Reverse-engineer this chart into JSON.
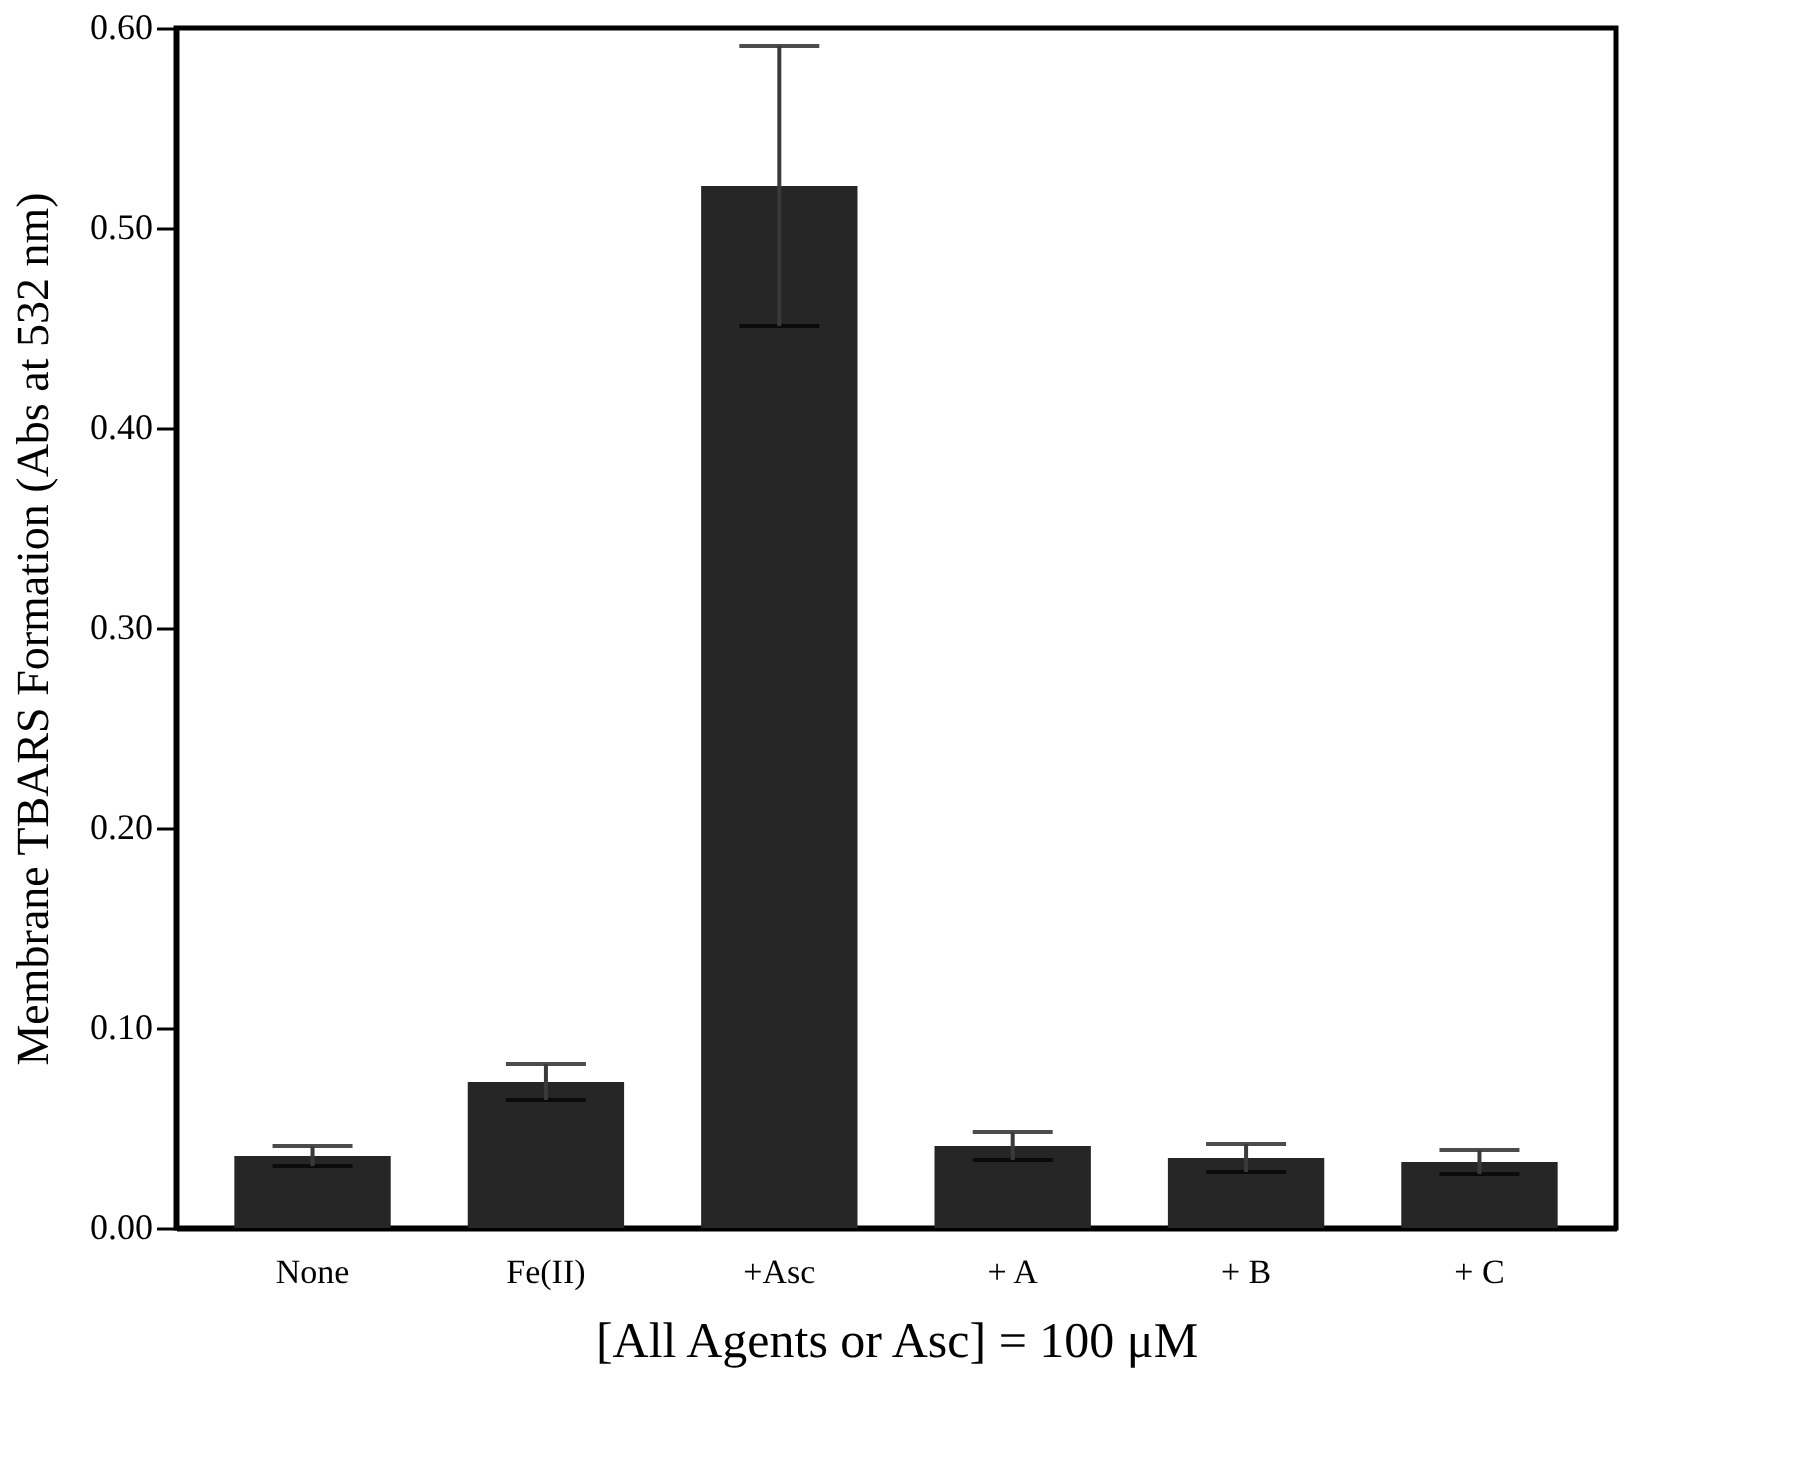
{
  "chart_data": {
    "type": "bar",
    "categories": [
      "None",
      "Fe(II)",
      "+Asc",
      "+ A",
      "+ B",
      "+ C"
    ],
    "values": [
      0.036,
      0.073,
      0.521,
      0.041,
      0.035,
      0.033
    ],
    "errors": [
      0.005,
      0.009,
      0.07,
      0.007,
      0.007,
      0.006
    ],
    "color": "#262626",
    "xlabel": "[All Agents or Asc] = 100 μM",
    "ylabel": "Membrane TBARS Formation (Abs at 532 nm)",
    "ylim": [
      0,
      0.6
    ],
    "yticks": [
      {
        "value": 0,
        "label": "0.00"
      },
      {
        "value": 0.1,
        "label": "0.10"
      },
      {
        "value": 0.2,
        "label": "0.20"
      },
      {
        "value": 0.3,
        "label": "0.30"
      },
      {
        "value": 0.4,
        "label": "0.40"
      },
      {
        "value": 0.5,
        "label": "0.50"
      },
      {
        "value": 0.6,
        "label": "0.60"
      }
    ],
    "grid": false
  }
}
